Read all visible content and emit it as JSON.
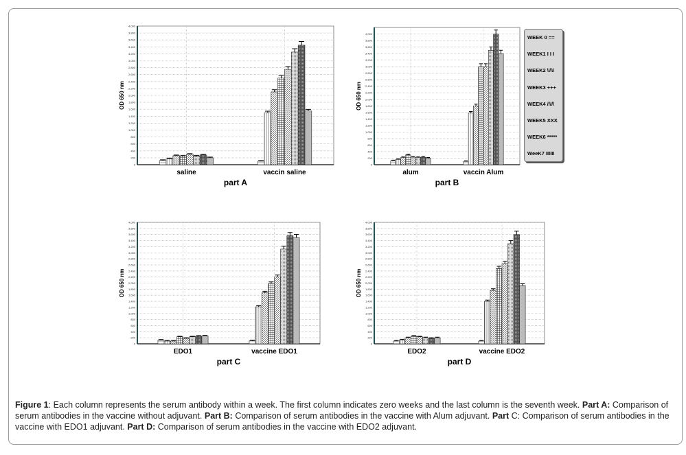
{
  "legend": [
    "WEEK 0 ==",
    "WEEK1 I  I  I",
    "WEEK2 \\\\\\\\\\",
    "WEEK3  +++",
    "WEEK4 /////",
    "WEEK5 XXX",
    "WEEK6 *****",
    "WeeK7 IIIIII"
  ],
  "caption": {
    "fig_label": "Figure 1",
    "t1": ": Each column represents the serum antibody within a week. The first column indicates zero weeks and the last column is the seventh week. ",
    "a_label": "Part A:",
    "t2": " Comparison of serum antibodies in the vaccine without adjuvant. ",
    "b_label": "Part B:",
    "t3": " Comparison of serum antibodies in the vaccine with Alum adjuvant. ",
    "c_label": "Part",
    "t4": " C: Comparison of serum antibodies in the vaccine with EDO1 adjuvant. ",
    "d_label": "Part D:",
    "t5": " Comparison of serum antibodies in the vaccine with EDO2 adjuvant."
  },
  "chart_data": [
    {
      "type": "bar",
      "title": "part A",
      "ylabel": "OD 650 nm",
      "ylim": [
        0,
        4000
      ],
      "yticks": [
        "0",
        "200",
        "400",
        "600",
        "800",
        "1,000",
        "1,200",
        "1,400",
        "1,600",
        "1,800",
        "2,000",
        "2,200",
        "2,400",
        "2,600",
        "2,800",
        "3,000",
        "3,200",
        "3,400",
        "3,600",
        "3,800",
        "4,000"
      ],
      "categories": [
        "saline",
        "vaccin saline"
      ],
      "series_names": [
        "Week 0",
        "Week 1",
        "Week 2",
        "Week 3",
        "Week 4",
        "Week 5",
        "Week 6",
        "Week 7"
      ],
      "values": [
        [
          120,
          170,
          260,
          250,
          300,
          250,
          280,
          200
        ],
        [
          100,
          1500,
          2100,
          2500,
          2750,
          3250,
          3450,
          1550
        ]
      ]
    },
    {
      "type": "bar",
      "title": "part B",
      "ylabel": "OD 650 nm",
      "ylim": [
        0,
        4200
      ],
      "yticks": [
        "0",
        "200",
        "400",
        "600",
        "800",
        "1,000",
        "1,200",
        "1,400",
        "1,600",
        "1,800",
        "2,000",
        "2,200",
        "2,400",
        "2,600",
        "2,800",
        "3,000",
        "3,200",
        "3,400",
        "3,600",
        "3,800",
        "4,000"
      ],
      "categories": [
        "alum",
        "vaccin Alum"
      ],
      "series_names": [
        "Week 0",
        "Week 1",
        "Week 2",
        "Week 3",
        "Week 4",
        "Week 5",
        "Week 6",
        "Week 7"
      ],
      "values": [
        [
          120,
          160,
          220,
          300,
          230,
          220,
          230,
          200
        ],
        [
          100,
          1580,
          1800,
          3000,
          3000,
          3500,
          4000,
          3400
        ]
      ]
    },
    {
      "type": "bar",
      "title": "part C",
      "ylabel": "OD 650 nm",
      "ylim": [
        0,
        4000
      ],
      "yticks": [
        "0",
        "200",
        "400",
        "600",
        "800",
        "1,000",
        "1,200",
        "1,400",
        "1,600",
        "1,800",
        "2,000",
        "2,200",
        "2,400",
        "2,600",
        "2,800",
        "3,000",
        "3,200",
        "3,400",
        "3,600",
        "3,800",
        "4,000"
      ],
      "categories": [
        "EDO1",
        "vaccine EDO1"
      ],
      "series_names": [
        "Week 0",
        "Week 1",
        "Week 2",
        "Week 3",
        "Week 4",
        "Week 5",
        "Week 6",
        "Week 7"
      ],
      "values": [
        [
          120,
          90,
          90,
          230,
          180,
          230,
          250,
          260
        ],
        [
          100,
          1220,
          1680,
          1980,
          2200,
          3120,
          3560,
          3500
        ]
      ]
    },
    {
      "type": "bar",
      "title": "part D",
      "ylabel": "OD 650 nm",
      "ylim": [
        0,
        4000
      ],
      "yticks": [
        "0",
        "200",
        "400",
        "600",
        "800",
        "1,000",
        "1,200",
        "1,400",
        "1,600",
        "1,800",
        "2,000",
        "2,200",
        "2,400",
        "2,600",
        "2,800",
        "3,000",
        "3,200",
        "3,400",
        "3,600",
        "3,800",
        "4,000"
      ],
      "categories": [
        "EDO2",
        "vaccine EDO2"
      ],
      "series_names": [
        "Week 0",
        "Week 1",
        "Week 2",
        "Week 3",
        "Week 4",
        "Week 5",
        "Week 6",
        "Week 7"
      ],
      "values": [
        [
          90,
          130,
          200,
          250,
          230,
          200,
          180,
          200
        ],
        [
          90,
          1400,
          1760,
          2480,
          2640,
          3300,
          3600,
          1920
        ]
      ]
    }
  ]
}
